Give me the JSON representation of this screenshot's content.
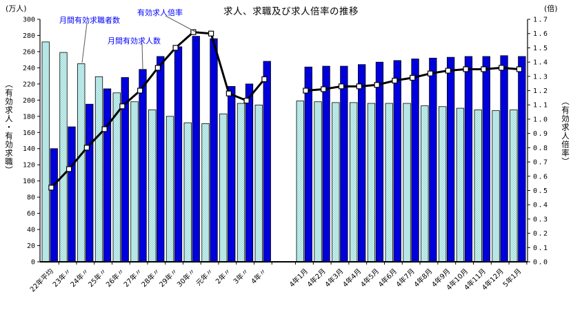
{
  "chart_data": {
    "type": "bar+line",
    "title": "求人、求職及び求人倍率の推移",
    "y_left": {
      "unit": "(万人)",
      "axis_label": "（有効求人・有効求職）",
      "min": 0,
      "max": 300,
      "step": 20
    },
    "y_right": {
      "unit": "(倍)",
      "axis_label": "（有効求人倍率）",
      "min": 0,
      "max": 1.7,
      "step": 0.1
    },
    "series_names": {
      "seekers": "月間有効求職者数",
      "openings": "月間有効求人数",
      "ratio": "有効求人倍率"
    },
    "legend_position": "annotations-top-left",
    "grid": false,
    "groups": [
      {
        "categories": [
          "22年平均",
          "23年〃",
          "24年〃",
          "25年〃",
          "26年〃",
          "27年〃",
          "28年〃",
          "29年〃",
          "30年〃",
          "元年〃",
          "2年〃",
          "3年〃",
          "4年〃"
        ],
        "seekers": [
          272,
          259,
          245,
          229,
          209,
          198,
          188,
          180,
          172,
          171,
          183,
          196,
          194
        ],
        "openings": [
          140,
          167,
          195,
          214,
          228,
          238,
          254,
          266,
          279,
          276,
          217,
          220,
          248
        ],
        "ratio": [
          0.52,
          0.65,
          0.8,
          0.93,
          1.09,
          1.2,
          1.36,
          1.5,
          1.61,
          1.6,
          1.18,
          1.13,
          1.28
        ]
      },
      {
        "categories": [
          "4年1月",
          "4年2月",
          "4年3月",
          "4年4月",
          "4年5月",
          "4年6月",
          "4年7月",
          "4年8月",
          "4年9月",
          "4年10月",
          "4年11月",
          "4年12月",
          "5年1月"
        ],
        "seekers": [
          199,
          198,
          197,
          197,
          196,
          196,
          196,
          193,
          192,
          190,
          188,
          187,
          188
        ],
        "openings": [
          241,
          242,
          242,
          244,
          247,
          249,
          251,
          252,
          253,
          254,
          254,
          255,
          254
        ],
        "ratio": [
          1.2,
          1.21,
          1.23,
          1.23,
          1.24,
          1.27,
          1.29,
          1.32,
          1.34,
          1.35,
          1.35,
          1.36,
          1.35
        ]
      }
    ],
    "colors": {
      "openings_bar": "#0000DD",
      "seekers_bar_dark": "#8FD8D8",
      "seekers_bar_light": "#DFF4F4",
      "ratio_line": "#000000",
      "marker_fill": "#FFFFFF",
      "axis": "#000000",
      "annotation_text": "#0000FF",
      "callout_line": "#555555"
    }
  }
}
